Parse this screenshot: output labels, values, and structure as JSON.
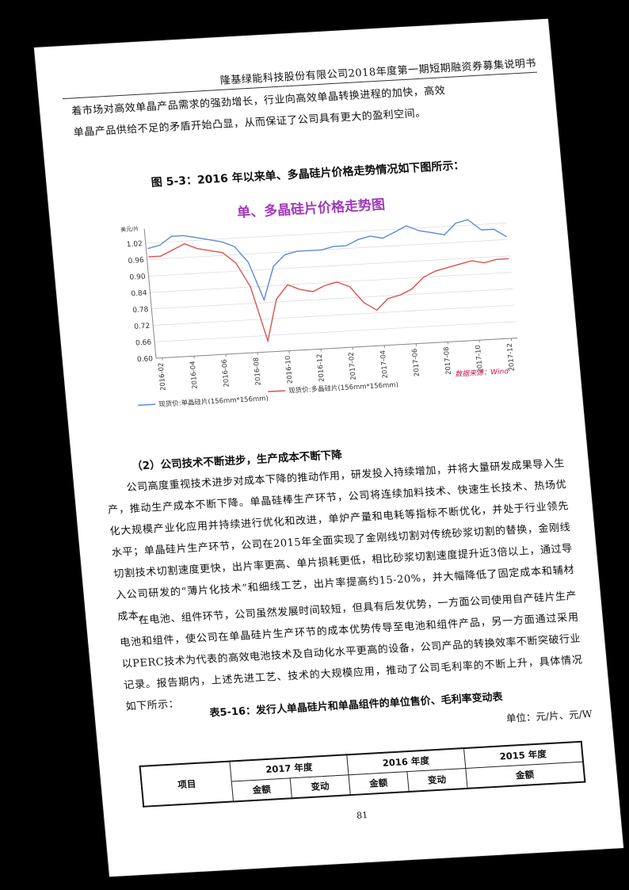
{
  "header": {
    "title": "隆基绿能科技股份有限公司2018年度第一期短期融资券募集说明书"
  },
  "intro_lines": [
    "着市场对高效单晶产品需求的强劲增长，行业向高效单晶转换进程的加快，高效",
    "单晶产品供给不足的矛盾开始凸显，从而保证了公司具有更大的盈利空间。"
  ],
  "figure": {
    "caption": "图 5-3：2016 年以来单、多晶硅片价格走势情况如下图所示："
  },
  "chart_data": {
    "type": "line",
    "title": "单、多晶硅片价格走势图",
    "ylabel": "美元/片",
    "ylim": [
      0.6,
      1.05
    ],
    "yticks": [
      "1.02",
      "0.96",
      "0.90",
      "0.84",
      "0.78",
      "0.72",
      "0.66",
      "0.60"
    ],
    "xticks": [
      "2016-02",
      "2016-04",
      "2016-06",
      "2016-08",
      "2016-10",
      "2016-12",
      "2017-02",
      "2017-04",
      "2017-06",
      "2017-08",
      "2017-10",
      "2017-12"
    ],
    "series": [
      {
        "name": "现货价:单晶硅片(156mm*156mm)",
        "color": "#5b8bd8",
        "values": [
          1.0,
          1.01,
          1.04,
          1.04,
          1.03,
          1.02,
          1.01,
          0.99,
          0.93,
          0.79,
          0.91,
          0.95,
          0.96,
          0.96,
          0.96,
          0.97,
          0.97,
          0.99,
          1.0,
          0.99,
          1.01,
          1.03,
          1.01,
          1.0,
          0.99,
          1.03,
          1.04,
          1.0,
          1.0,
          0.97
        ]
      },
      {
        "name": "现货价:多晶硅片(156mm*156mm)",
        "color": "#d9534f",
        "values": [
          0.97,
          0.97,
          0.99,
          1.01,
          0.99,
          0.98,
          0.97,
          0.93,
          0.84,
          0.64,
          0.79,
          0.84,
          0.82,
          0.81,
          0.83,
          0.84,
          0.82,
          0.76,
          0.73,
          0.77,
          0.78,
          0.8,
          0.84,
          0.86,
          0.87,
          0.88,
          0.89,
          0.88,
          0.89,
          0.89
        ]
      }
    ],
    "source": "数据来源：Wind",
    "source_color": "#c2185b"
  },
  "section": {
    "title": "（2）公司技术不断进步，生产成本不断下降"
  },
  "paragraphs": [
    "公司高度重视技术进步对成本下降的推动作用，研发投入持续增加，并将大量研发成果导入生产，推动生产成本不断下降。单晶硅棒生产环节，公司将连续加料技术、快速生长技术、热场优化大规模产业化应用并持续进行优化和改进，单炉产量和电耗等指标不断优化，并处于行业领先水平；单晶硅片生产环节，公司在2015年全面实现了金刚线切割对传统砂浆切割的替换，金刚线切割技术切割速度更快，出片率更高、单片损耗更低，相比砂浆切割速度提升近3倍以上，通过导入公司研发的“薄片化技术”和细线工艺，出片率提高约15-20%，并大幅降低了固定成本和辅材成本。",
    "在电池、组件环节，公司虽然发展时间较短，但具有后发优势，一方面公司使用自产硅片生产电池和组件，使公司在单晶硅片生产环节的成本优势传导至电池和组件产品，另一方面通过采用以PERC技术为代表的高效电池技术及自动化水平更高的设备，公司产品的转换效率不断突破行业记录。报告期内，上述先进工艺、技术的大规模应用，推动了公司毛利率的不断上升，具体情况如下所示："
  ],
  "table": {
    "caption": "表5-16：发行人单晶硅片和单晶组件的单位售价、毛利率变动表",
    "unit": "单位：元/片、元/W",
    "row_header": "项目",
    "years": [
      "2017 年度",
      "2016 年度",
      "2015 年度"
    ],
    "sub": {
      "amount": "金额",
      "change": "变动"
    }
  },
  "page_number": "81"
}
